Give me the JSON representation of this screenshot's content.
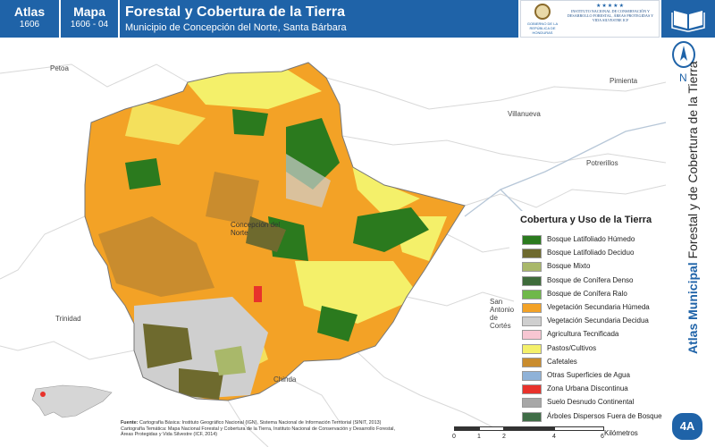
{
  "header": {
    "atlas_label": "Atlas",
    "atlas_code": "1606",
    "mapa_label": "Mapa",
    "mapa_code": "1606 - 04",
    "title": "Forestal y Cobertura de la Tierra",
    "subtitle": "Municipio de Concepción del Norte, Santa Bárbara",
    "logo_left_caption": "GOBIERNO DE LA REPÚBLICA DE HONDURAS",
    "logo_right_stars": "★★★★★",
    "logo_right_text": "INSTITUTO NACIONAL DE CONSERVACIÓN Y DESARROLLO FORESTAL, ÁREAS PROTEGIDAS Y VIDA SILVESTRE ICF"
  },
  "map": {
    "places": [
      "Petoa",
      "Pimienta",
      "Villanueva",
      "Potrerillos",
      "Concepción del Norte",
      "San Antonio de Cortés",
      "Trinidad",
      "Chinda"
    ]
  },
  "side": {
    "vertical_title_bold": "Atlas Municipal",
    "vertical_title_rest": " Forestal y de Cobertura de la Tierra",
    "north_label": "N",
    "badge": "4A"
  },
  "legend": {
    "title": "Cobertura y Uso de la Tierra",
    "items": [
      {
        "label": "Bosque Latifoliado Húmedo",
        "color": "#2b7a1e"
      },
      {
        "label": "Bosque Latifoliado Deciduo",
        "color": "#6e6a2e"
      },
      {
        "label": "Bosque Mixto",
        "color": "#a9b86a"
      },
      {
        "label": "Bosque de Conífera Denso",
        "color": "#3e6b3a"
      },
      {
        "label": "Bosque de Conífera Ralo",
        "color": "#6fb84a"
      },
      {
        "label": "Vegetación Secundaria Húmeda",
        "color": "#f3a226"
      },
      {
        "label": "Vegetación Secundaria Decidua",
        "color": "#cfcfcf"
      },
      {
        "label": "Agricultura Tecnificada",
        "color": "#f7c6d2"
      },
      {
        "label": "Pastos/Cultivos",
        "color": "#f4f06a"
      },
      {
        "label": "Cafetales",
        "color": "#c98c2e"
      },
      {
        "label": "Otras Superficies de Agua",
        "color": "#8fb2d8"
      },
      {
        "label": "Zona Urbana Discontinua",
        "color": "#e8322b"
      },
      {
        "label": "Suelo Desnudo Continental",
        "color": "#a7a7a7"
      },
      {
        "label": "Árboles Dispersos Fuera de Bosque",
        "color": "#3f6d46"
      }
    ]
  },
  "footer": {
    "sources_label": "Fuente:",
    "sources_line1": "Cartografía Básica: Instituto Geográfico Nacional (IGN), Sistema Nacional de Información Territorial (SINIT, 2013)",
    "sources_line2": "Cartografía Temática: Mapa Nacional Forestal y Cobertura de la Tierra, Instituto Nacional de Conservación y Desarrollo Forestal,",
    "sources_line3": "Áreas Protegidas y Vida Silvestre (ICF, 2014)",
    "scale_ticks": [
      "0",
      "1",
      "2",
      "4",
      "6"
    ],
    "scale_unit": "Kilómetros"
  }
}
